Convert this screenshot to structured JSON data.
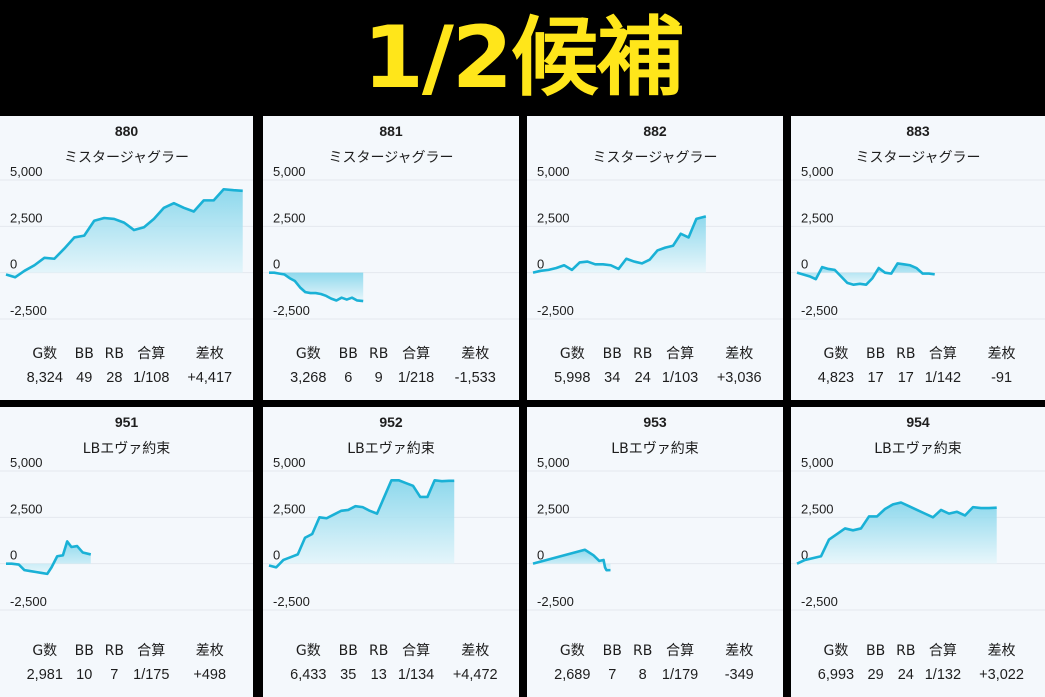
{
  "banner": {
    "title": "1/2候補"
  },
  "stat_headers": [
    "G数",
    "BB",
    "RB",
    "合算",
    "差枚"
  ],
  "colors": {
    "line": "#1ab1d6",
    "fill_top": "#7dd3ea",
    "fill_bottom": "#e6f6fb",
    "grid": "#e4e8ee"
  },
  "panels": [
    {
      "number": "880",
      "model": "ミスタージャグラー",
      "stats": [
        "8,324",
        "49",
        "28",
        "1/108",
        "+4,417"
      ]
    },
    {
      "number": "881",
      "model": "ミスタージャグラー",
      "stats": [
        "3,268",
        "6",
        "9",
        "1/218",
        "-1,533"
      ]
    },
    {
      "number": "882",
      "model": "ミスタージャグラー",
      "stats": [
        "5,998",
        "34",
        "24",
        "1/103",
        "+3,036"
      ]
    },
    {
      "number": "883",
      "model": "ミスタージャグラー",
      "stats": [
        "4,823",
        "17",
        "17",
        "1/142",
        "-91"
      ]
    },
    {
      "number": "951",
      "model": "LBエヴァ約束",
      "stats": [
        "2,981",
        "10",
        "7",
        "1/175",
        "+498"
      ]
    },
    {
      "number": "952",
      "model": "LBエヴァ約束",
      "stats": [
        "6,433",
        "35",
        "13",
        "1/134",
        "+4,472"
      ]
    },
    {
      "number": "953",
      "model": "LBエヴァ約束",
      "stats": [
        "2,689",
        "7",
        "8",
        "1/179",
        "-349"
      ]
    },
    {
      "number": "954",
      "model": "LBエヴァ約束",
      "stats": [
        "6,993",
        "29",
        "24",
        "1/132",
        "+3,022"
      ]
    }
  ],
  "chart_data": [
    {
      "type": "area",
      "ylabels": [
        "5,000",
        "2,500",
        "0",
        "-2,500"
      ],
      "yticks": [
        5000,
        2500,
        0,
        -2500
      ],
      "x": [
        0,
        0.32,
        0.65,
        1.0,
        1.35,
        1.7,
        2.05,
        2.4,
        2.75,
        3.1,
        3.45,
        3.8,
        4.15,
        4.5,
        4.85,
        5.2,
        5.55,
        5.9,
        6.25,
        6.6,
        6.95,
        7.3,
        7.65,
        8.0,
        8.32
      ],
      "values": [
        -100,
        -250,
        100,
        400,
        800,
        750,
        1300,
        1900,
        2000,
        2800,
        2950,
        2900,
        2700,
        2300,
        2450,
        2900,
        3500,
        3750,
        3500,
        3300,
        3900,
        3900,
        4500,
        4450,
        4417
      ]
    },
    {
      "type": "area",
      "ylabels": [
        "5,000",
        "2,500",
        "0",
        "-2,500"
      ],
      "yticks": [
        5000,
        2500,
        0,
        -2500
      ],
      "x": [
        0,
        0.18,
        0.36,
        0.54,
        0.72,
        0.9,
        1.08,
        1.26,
        1.44,
        1.62,
        1.8,
        1.98,
        2.16,
        2.34,
        2.52,
        2.7,
        2.88,
        3.06,
        3.27
      ],
      "values": [
        0,
        0,
        -50,
        -100,
        -300,
        -450,
        -800,
        -1050,
        -1100,
        -1100,
        -1150,
        -1250,
        -1400,
        -1500,
        -1350,
        -1450,
        -1350,
        -1500,
        -1533
      ]
    },
    {
      "type": "area",
      "ylabels": [
        "5,000",
        "2,500",
        "0",
        "-2,500"
      ],
      "yticks": [
        5000,
        2500,
        0,
        -2500
      ],
      "x": [
        0,
        0.27,
        0.54,
        0.81,
        1.08,
        1.35,
        1.62,
        1.89,
        2.16,
        2.43,
        2.7,
        2.97,
        3.24,
        3.51,
        3.78,
        4.05,
        4.32,
        4.59,
        4.86,
        5.13,
        5.4,
        5.67,
        6.0
      ],
      "values": [
        0,
        100,
        150,
        250,
        400,
        150,
        550,
        600,
        450,
        450,
        400,
        200,
        750,
        600,
        500,
        700,
        1200,
        1350,
        1450,
        2100,
        1900,
        2900,
        3036
      ]
    },
    {
      "type": "area",
      "ylabels": [
        "5,000",
        "2,500",
        "0",
        "-2,500"
      ],
      "yticks": [
        5000,
        2500,
        0,
        -2500
      ],
      "x": [
        0,
        0.22,
        0.44,
        0.66,
        0.88,
        1.1,
        1.32,
        1.54,
        1.76,
        1.98,
        2.2,
        2.42,
        2.64,
        2.86,
        3.08,
        3.3,
        3.52,
        3.74,
        3.96,
        4.18,
        4.4,
        4.62,
        4.82
      ],
      "values": [
        0,
        -100,
        -200,
        -350,
        300,
        200,
        150,
        -200,
        -550,
        -650,
        -600,
        -650,
        -300,
        250,
        0,
        -50,
        500,
        450,
        400,
        250,
        -50,
        -50,
        -91
      ]
    },
    {
      "type": "area",
      "ylabels": [
        "5,000",
        "2,500",
        "0",
        "-2,500"
      ],
      "yticks": [
        5000,
        2500,
        0,
        -2500
      ],
      "x": [
        0,
        0.2,
        0.45,
        0.65,
        0.85,
        1.05,
        1.25,
        1.45,
        1.6,
        1.8,
        2.0,
        2.15,
        2.3,
        2.5,
        2.7,
        2.98
      ],
      "values": [
        0,
        0,
        -50,
        -350,
        -400,
        -450,
        -500,
        -550,
        -200,
        400,
        450,
        1200,
        900,
        950,
        600,
        498
      ]
    },
    {
      "type": "area",
      "ylabels": [
        "5,000",
        "2,500",
        "0",
        "-2,500"
      ],
      "yticks": [
        5000,
        2500,
        0,
        -2500
      ],
      "x": [
        0,
        0.25,
        0.5,
        0.75,
        1.0,
        1.25,
        1.5,
        1.75,
        2.0,
        2.25,
        2.5,
        2.75,
        3.0,
        3.25,
        3.5,
        3.75,
        4.0,
        4.25,
        4.5,
        4.75,
        5.0,
        5.25,
        5.5,
        5.75,
        6.0,
        6.25,
        6.43
      ],
      "values": [
        -100,
        -200,
        200,
        350,
        500,
        1400,
        1600,
        2500,
        2450,
        2650,
        2850,
        2900,
        3100,
        3050,
        2850,
        2700,
        3600,
        4500,
        4500,
        4350,
        4200,
        3600,
        3600,
        4500,
        4450,
        4472,
        4472
      ]
    },
    {
      "type": "area",
      "ylabels": [
        "5,000",
        "2,500",
        "0",
        "-2,500"
      ],
      "yticks": [
        5000,
        2500,
        0,
        -2500
      ],
      "x": [
        0,
        1.8,
        2.1,
        2.3,
        2.45,
        2.5,
        2.55,
        2.69
      ],
      "values": [
        0,
        750,
        450,
        150,
        200,
        -200,
        -350,
        -349
      ]
    },
    {
      "type": "area",
      "ylabels": [
        "5,000",
        "2,500",
        "0",
        "-2,500"
      ],
      "yticks": [
        5000,
        2500,
        0,
        -2500
      ],
      "x": [
        0,
        0.28,
        0.56,
        0.84,
        1.12,
        1.4,
        1.68,
        1.96,
        2.24,
        2.52,
        2.8,
        3.08,
        3.36,
        3.64,
        3.92,
        4.2,
        4.48,
        4.76,
        5.04,
        5.32,
        5.6,
        5.88,
        6.16,
        6.44,
        6.72,
        6.99
      ],
      "values": [
        0,
        200,
        300,
        400,
        1300,
        1600,
        1900,
        1800,
        1900,
        2550,
        2550,
        2950,
        3200,
        3300,
        3100,
        2900,
        2700,
        2500,
        2900,
        2700,
        2800,
        2600,
        3050,
        3000,
        3000,
        3022
      ]
    }
  ]
}
